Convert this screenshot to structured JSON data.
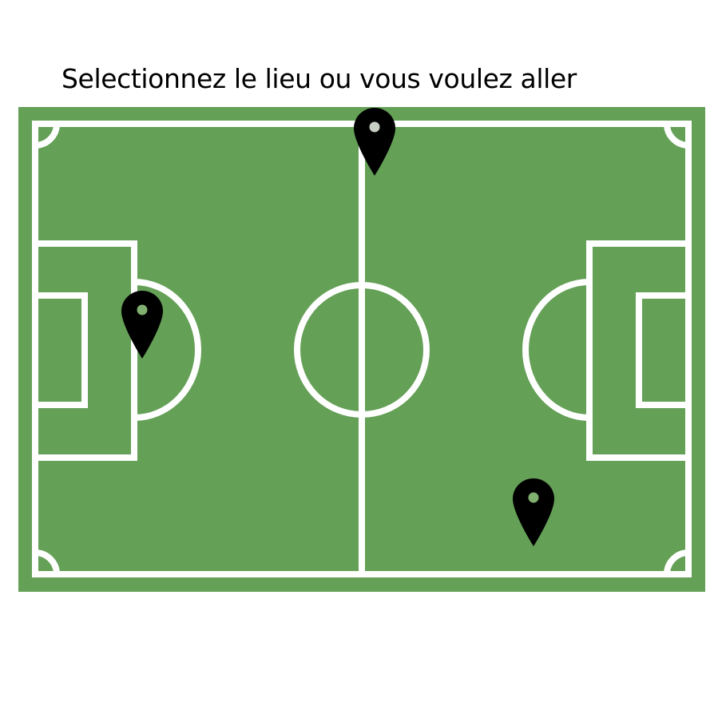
{
  "prompt": {
    "title": "Selectionnez le lieu ou vous voulez aller"
  },
  "field": {
    "grass_color": "#65a057",
    "line_color": "#ffffff"
  },
  "pins": [
    {
      "id": "pin-top",
      "icon": "map-pin-icon",
      "color": "#000000"
    },
    {
      "id": "pin-left",
      "icon": "map-pin-icon",
      "color": "#000000"
    },
    {
      "id": "pin-right",
      "icon": "map-pin-icon",
      "color": "#000000"
    }
  ]
}
